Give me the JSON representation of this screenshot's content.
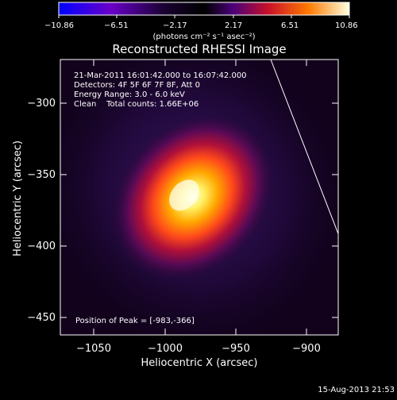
{
  "colorbar": {
    "tick_labels": [
      "−10.86",
      "−6.51",
      "−2.17",
      "2.17",
      "6.51",
      "10.86"
    ],
    "unit_label": "(photons cm⁻² s⁻¹ asec⁻²)"
  },
  "plot": {
    "title": "Reconstructed RHESSI Image",
    "xlabel": "Heliocentric X (arcsec)",
    "ylabel": "Heliocentric Y (arcsec)",
    "x_tick_labels": [
      "−1050",
      "−1000",
      "−950",
      "−900"
    ],
    "y_tick_labels": [
      "−300",
      "−350",
      "−400",
      "−450"
    ],
    "annotation_lines": [
      "21-Mar-2011 16:01:42.000 to 16:07:42.000",
      "Detectors: 4F 5F 6F 7F 8F, Att 0",
      "Energy Range: 3.0 - 6.0 keV",
      "Clean    Total counts: 1.66E+06"
    ],
    "peak_label": "Position of Peak = [-983,-366]",
    "peak_position": [
      -983,
      -366
    ]
  },
  "footer": {
    "timestamp": "15-Aug-2013 21:53"
  }
}
